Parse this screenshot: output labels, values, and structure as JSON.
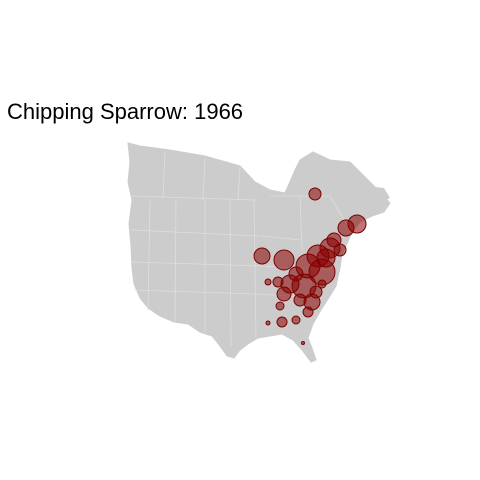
{
  "title": "Chipping Sparrow: 1966",
  "colors": {
    "background": "#ffffff",
    "land": "#cccccc",
    "border": "#dedede",
    "point_fill": "#8b0000",
    "point_stroke": "#7a0000"
  }
}
